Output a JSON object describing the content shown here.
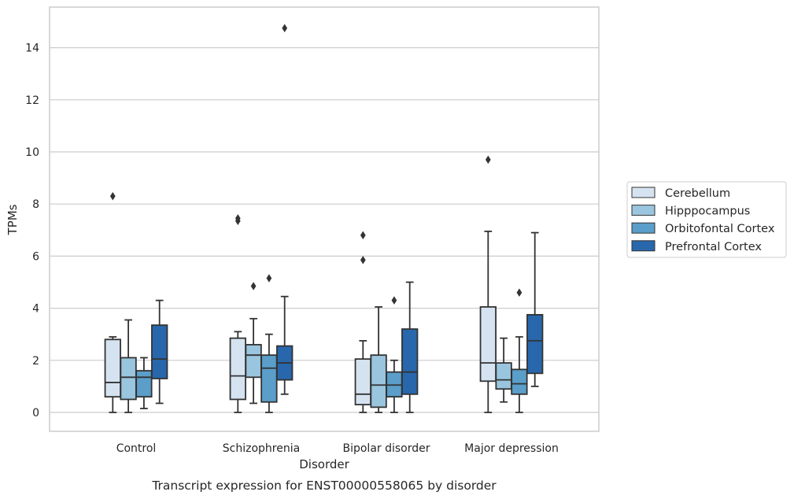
{
  "chart_data": {
    "type": "box",
    "title": "Transcript expression for ENST00000558065 by disorder",
    "xlabel": "Disorder",
    "ylabel": "TPMs",
    "ylim": [
      -0.7,
      15.5
    ],
    "yticks": [
      0,
      2,
      4,
      6,
      8,
      10,
      12,
      14
    ],
    "grid": "horizontal",
    "legend_position": "outside-right",
    "categories": [
      "Control",
      "Schizophrenia",
      "Bipolar disorder",
      "Major depression"
    ],
    "series": [
      {
        "name": "Cerebellum",
        "color": "#d5e3f1",
        "boxes": [
          {
            "q1": 0.6,
            "median": 1.15,
            "q3": 2.8,
            "whislo": 0.0,
            "whishi": 2.9,
            "fliers": [
              8.3
            ]
          },
          {
            "q1": 0.5,
            "median": 1.4,
            "q3": 2.85,
            "whislo": 0.0,
            "whishi": 3.1,
            "fliers": [
              7.35,
              7.45
            ]
          },
          {
            "q1": 0.3,
            "median": 0.7,
            "q3": 2.05,
            "whislo": 0.0,
            "whishi": 2.75,
            "fliers": [
              5.85,
              6.8
            ]
          },
          {
            "q1": 1.2,
            "median": 1.9,
            "q3": 4.05,
            "whislo": 0.0,
            "whishi": 6.95,
            "fliers": [
              9.7
            ]
          }
        ]
      },
      {
        "name": "Hipppocampus",
        "color": "#9ac5de",
        "boxes": [
          {
            "q1": 0.5,
            "median": 1.35,
            "q3": 2.1,
            "whislo": 0.0,
            "whishi": 3.55,
            "fliers": []
          },
          {
            "q1": 1.35,
            "median": 2.2,
            "q3": 2.6,
            "whislo": 0.35,
            "whishi": 3.6,
            "fliers": [
              4.85
            ]
          },
          {
            "q1": 0.2,
            "median": 1.05,
            "q3": 2.2,
            "whislo": 0.0,
            "whishi": 4.05,
            "fliers": []
          },
          {
            "q1": 0.9,
            "median": 1.25,
            "q3": 1.9,
            "whislo": 0.4,
            "whishi": 2.85,
            "fliers": []
          }
        ]
      },
      {
        "name": "Orbitofontal Cortex",
        "color": "#5a9ec9",
        "boxes": [
          {
            "q1": 0.6,
            "median": 1.35,
            "q3": 1.6,
            "whislo": 0.15,
            "whishi": 2.1,
            "fliers": []
          },
          {
            "q1": 0.4,
            "median": 1.7,
            "q3": 2.2,
            "whislo": 0.0,
            "whishi": 3.0,
            "fliers": [
              5.15
            ]
          },
          {
            "q1": 0.6,
            "median": 1.05,
            "q3": 1.55,
            "whislo": 0.0,
            "whishi": 2.0,
            "fliers": [
              4.3
            ]
          },
          {
            "q1": 0.7,
            "median": 1.1,
            "q3": 1.65,
            "whislo": 0.0,
            "whishi": 2.9,
            "fliers": [
              4.6
            ]
          }
        ]
      },
      {
        "name": "Prefrontal Cortex",
        "color": "#2867ac",
        "boxes": [
          {
            "q1": 1.3,
            "median": 2.05,
            "q3": 3.35,
            "whislo": 0.35,
            "whishi": 4.3,
            "fliers": []
          },
          {
            "q1": 1.25,
            "median": 1.9,
            "q3": 2.55,
            "whislo": 0.7,
            "whishi": 4.45,
            "fliers": [
              14.75
            ]
          },
          {
            "q1": 0.7,
            "median": 1.55,
            "q3": 3.2,
            "whislo": 0.0,
            "whishi": 5.0,
            "fliers": []
          },
          {
            "q1": 1.5,
            "median": 2.75,
            "q3": 3.75,
            "whislo": 1.0,
            "whishi": 6.9,
            "fliers": []
          }
        ]
      }
    ]
  }
}
